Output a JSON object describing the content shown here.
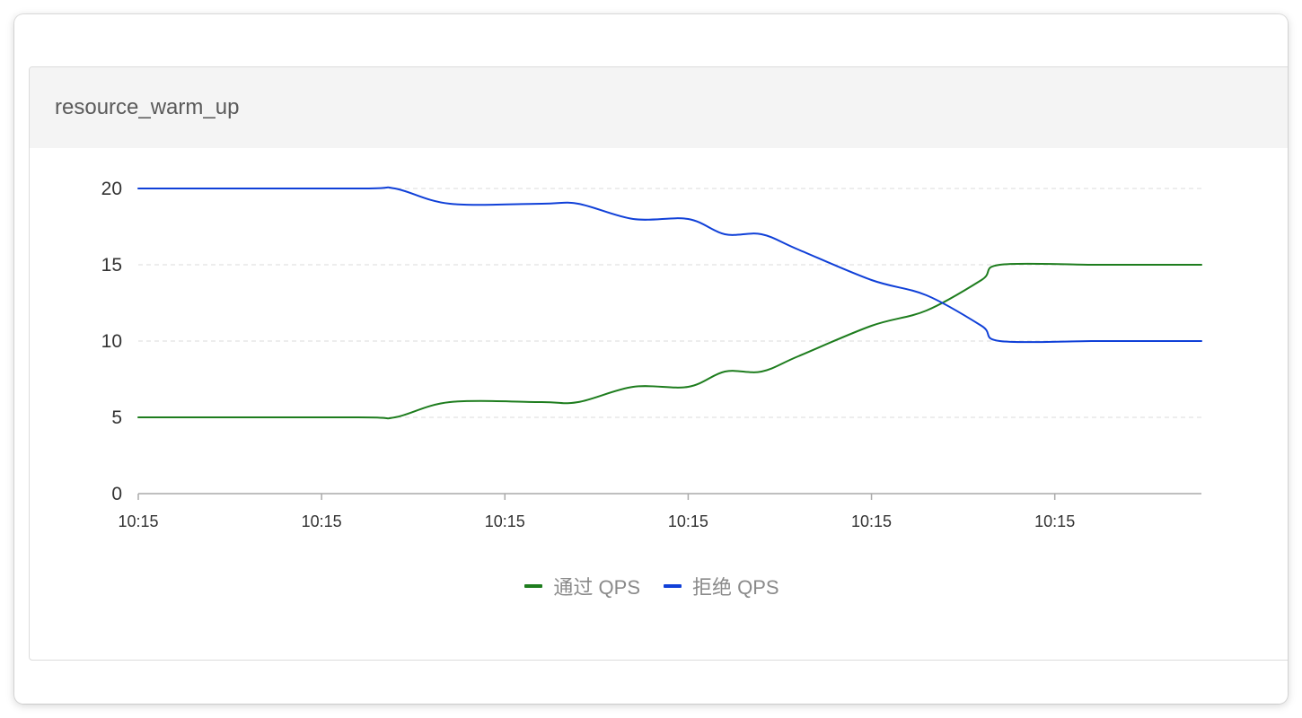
{
  "panel": {
    "title": "resource_warm_up"
  },
  "colors": {
    "pass": "#1e7d1e",
    "block": "#1040d8",
    "grid": "#e2e2e2",
    "axis": "#aaaaaa",
    "tick_text": "#333333"
  },
  "chart_data": {
    "type": "line",
    "title": "",
    "xlabel": "",
    "ylabel": "",
    "ylim": [
      0,
      20
    ],
    "yticks": [
      0,
      5,
      10,
      15,
      20
    ],
    "xlim": [
      0,
      58
    ],
    "xticks": [
      0,
      10,
      20,
      30,
      40,
      50
    ],
    "xtick_labels": [
      "10:15",
      "10:15",
      "10:15",
      "10:15",
      "10:15",
      "10:15"
    ],
    "grid": "horizontal-dashed",
    "legend_position": "bottom-center",
    "series": [
      {
        "name": "通过 QPS",
        "color": "#1e7d1e",
        "x": [
          0,
          12,
          14,
          17,
          22,
          24,
          27,
          30,
          32,
          34,
          36,
          40,
          43,
          46,
          47,
          52,
          53,
          58
        ],
        "values": [
          5,
          5,
          5,
          6,
          6,
          6,
          7,
          7,
          8,
          8,
          9,
          11,
          12,
          14,
          15,
          15,
          15,
          15
        ]
      },
      {
        "name": "拒绝 QPS",
        "color": "#1040d8",
        "x": [
          0,
          12,
          14,
          17,
          22,
          24,
          27,
          30,
          32,
          34,
          36,
          40,
          43,
          46,
          47,
          52,
          53,
          58
        ],
        "values": [
          20,
          20,
          20,
          19,
          19,
          19,
          18,
          18,
          17,
          17,
          16,
          14,
          13,
          11,
          10,
          10,
          10,
          10
        ]
      }
    ]
  },
  "legend": {
    "items": [
      {
        "label": "通过 QPS",
        "color": "#1e7d1e"
      },
      {
        "label": "拒绝 QPS",
        "color": "#1040d8"
      }
    ]
  }
}
